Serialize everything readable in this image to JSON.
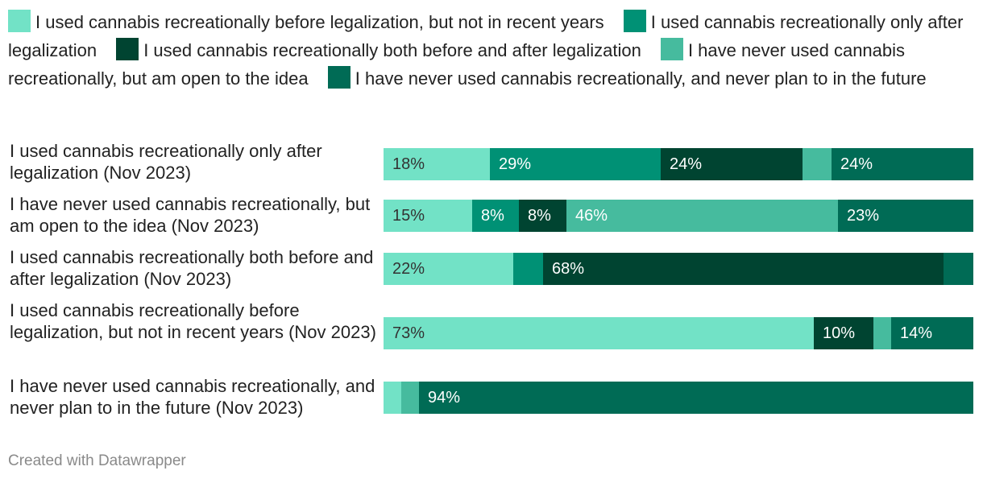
{
  "chart_data": {
    "type": "bar",
    "orientation": "horizontal",
    "stacked": true,
    "normalized": true,
    "xlim": [
      0,
      100
    ],
    "title": "",
    "xlabel": "",
    "ylabel": "",
    "legend_position": "top",
    "categories": [
      "I used cannabis recreationally only after legalization (Nov 2023)",
      "I have never used cannabis recreationally, but am open to the idea (Nov 2023)",
      "I used cannabis recreationally both before and after legalization (Nov 2023)",
      "I used cannabis recreationally before legalization, but not in recent years (Nov 2023)",
      "I have never used cannabis recreationally, and never plan to in the future (Nov 2023)"
    ],
    "series": [
      {
        "name": "I used cannabis recreationally before legalization, but not in recent years",
        "color": "#72e2c6",
        "label_color": "#333333",
        "values": [
          18,
          15,
          22,
          73,
          3
        ],
        "labels": [
          "18%",
          "15%",
          "22%",
          "73%",
          ""
        ]
      },
      {
        "name": "I used cannabis recreationally only after legalization",
        "color": "#009175",
        "label_color": "#ffffff",
        "values": [
          29,
          8,
          5,
          0,
          0
        ],
        "labels": [
          "29%",
          "8%",
          "",
          "",
          ""
        ]
      },
      {
        "name": "I used cannabis recreationally both before and after legalization",
        "color": "#004431",
        "label_color": "#ffffff",
        "values": [
          24,
          8,
          68,
          10,
          0
        ],
        "labels": [
          "24%",
          "8%",
          "68%",
          "10%",
          ""
        ]
      },
      {
        "name": "I have never used cannabis recreationally, but am open to the idea",
        "color": "#46bb9e",
        "label_color": "#ffffff",
        "values": [
          5,
          46,
          0,
          3,
          3
        ],
        "labels": [
          "",
          "46%",
          "",
          "",
          ""
        ]
      },
      {
        "name": "I have never used cannabis recreationally, and never plan to in the future",
        "color": "#006b55",
        "label_color": "#ffffff",
        "values": [
          24,
          23,
          5,
          14,
          94
        ],
        "labels": [
          "24%",
          "23%",
          "",
          "14%",
          "94%"
        ]
      }
    ]
  },
  "footer": {
    "credit": "Created with Datawrapper"
  }
}
